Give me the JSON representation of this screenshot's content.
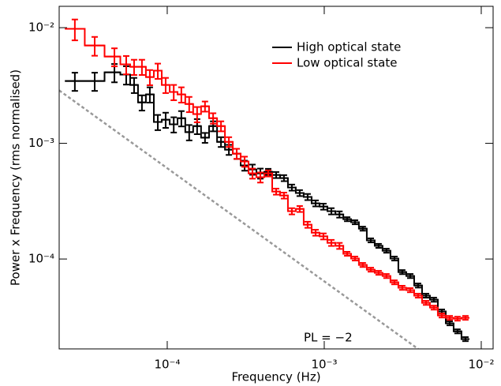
{
  "chart_data": {
    "type": "step",
    "x_label": "Frequency (Hz)",
    "y_label": "Power x Frequency (rms normalised)",
    "log_x": true,
    "log_y": true,
    "xlim": [
      2.05e-05,
      0.0119
    ],
    "ylim": [
      1.67e-05,
      0.0153
    ],
    "xticks": [
      {
        "value": 0.0001,
        "label": "10⁻⁴"
      },
      {
        "value": 0.001,
        "label": "10⁻³"
      },
      {
        "value": 0.01,
        "label": "10⁻²"
      }
    ],
    "yticks": [
      {
        "value": 0.0001,
        "label": "10⁻⁴"
      },
      {
        "value": 0.001,
        "label": "10⁻³"
      },
      {
        "value": 0.01,
        "label": "10⁻²"
      }
    ],
    "legend": "upper right",
    "x": [
      2.58e-05,
      3.45e-05,
      4.61e-05,
      5.48e-05,
      6.15e-05,
      6.9e-05,
      7.75e-05,
      8.71e-05,
      9.77e-05,
      0.00011,
      0.000123,
      0.000138,
      0.000155,
      0.000174,
      0.000196,
      0.00022,
      0.000247,
      0.000277,
      0.000311,
      0.000349,
      0.000392,
      0.00044,
      0.000494,
      0.000554,
      0.000622,
      0.000698,
      0.000784,
      0.000881,
      0.000988,
      0.00111,
      0.00125,
      0.0014,
      0.00157,
      0.00176,
      0.00198,
      0.00222,
      0.00249,
      0.0028,
      0.00314,
      0.00353,
      0.00396,
      0.00445,
      0.00499,
      0.00561,
      0.0063,
      0.00706,
      0.00793
    ],
    "series": [
      {
        "name": "High optical state",
        "color": "#000000",
        "values": [
          0.00346,
          0.00346,
          0.00411,
          0.00393,
          0.0032,
          0.00226,
          0.00265,
          0.00153,
          0.0016,
          0.00146,
          0.00165,
          0.00125,
          0.00141,
          0.00112,
          0.00141,
          0.00103,
          0.000882,
          0.000815,
          0.000644,
          0.000595,
          0.00055,
          0.000568,
          0.000533,
          0.000501,
          0.000415,
          0.000372,
          0.000344,
          0.000303,
          0.000284,
          0.000259,
          0.000243,
          0.000221,
          0.000208,
          0.000183,
          0.000145,
          0.00013,
          0.000118,
          0.000101,
          7.71e-05,
          7.13e-05,
          5.9e-05,
          4.82e-05,
          4.45e-05,
          3.52e-05,
          2.78e-05,
          2.37e-05,
          2.03e-05
        ],
        "errors": [
          0.00062,
          0.00062,
          0.00074,
          0.00071,
          0.00048,
          0.00034,
          0.0004,
          0.00023,
          0.00024,
          0.00022,
          0.00025,
          0.00019,
          0.00021,
          0.00011,
          0.00014,
          0.0001,
          8.8e-05,
          8.2e-05,
          6.4e-05,
          6e-05,
          5.5e-05,
          3.4e-05,
          3.2e-05,
          3e-05,
          2.5e-05,
          2.2e-05,
          2.1e-05,
          1.8e-05,
          1.7e-05,
          1.6e-05,
          1.5e-05,
          8.8e-06,
          8.3e-06,
          7.3e-06,
          5.8e-06,
          5.2e-06,
          4.7e-06,
          4e-06,
          3.1e-06,
          2.9e-06,
          2.4e-06,
          1.9e-06,
          1.8e-06,
          1.4e-06,
          1.1e-06,
          9.5e-07,
          8.1e-07
        ]
      },
      {
        "name": "Low optical state",
        "color": "#ff0000",
        "values": [
          0.00977,
          0.00702,
          0.00563,
          0.00482,
          0.00459,
          0.00459,
          0.00374,
          0.00425,
          0.0032,
          0.00278,
          0.00265,
          0.00219,
          0.00179,
          0.00209,
          0.00165,
          0.00141,
          0.00103,
          0.000815,
          0.000697,
          0.00055,
          0.000509,
          0.00055,
          0.000383,
          0.000354,
          0.000259,
          0.000271,
          0.000198,
          0.000169,
          0.000157,
          0.000138,
          0.00013,
          0.000111,
          0.000101,
          8.89e-05,
          8.09e-05,
          7.6e-05,
          7.13e-05,
          6.29e-05,
          5.64e-05,
          5.38e-05,
          4.82e-05,
          4.18e-05,
          3.8e-05,
          3.25e-05,
          3.1e-05,
          3.05e-05,
          3.1e-05
        ],
        "errors": [
          0.002,
          0.0013,
          0.001,
          0.00087,
          0.00069,
          0.00069,
          0.00056,
          0.00064,
          0.00048,
          0.00042,
          0.0004,
          0.00033,
          0.00027,
          0.00021,
          0.00017,
          0.00014,
          0.0001,
          8.2e-05,
          7e-05,
          5.5e-05,
          5.1e-05,
          3.3e-05,
          2.3e-05,
          2.1e-05,
          1.6e-05,
          1.6e-05,
          1.2e-05,
          1e-05,
          9.4e-06,
          8.3e-06,
          7.8e-06,
          4.4e-06,
          4e-06,
          3.6e-06,
          3.2e-06,
          3e-06,
          2.9e-06,
          2.5e-06,
          2.3e-06,
          2.2e-06,
          1.9e-06,
          1.7e-06,
          1.5e-06,
          1.3e-06,
          1.2e-06,
          1.2e-06,
          1.2e-06
        ]
      }
    ],
    "reference_line": {
      "label": "PL = −2",
      "color": "#999999",
      "x": [
        2.05e-05,
        0.00396
      ],
      "y": [
        0.00287,
        1.67e-05
      ]
    }
  }
}
